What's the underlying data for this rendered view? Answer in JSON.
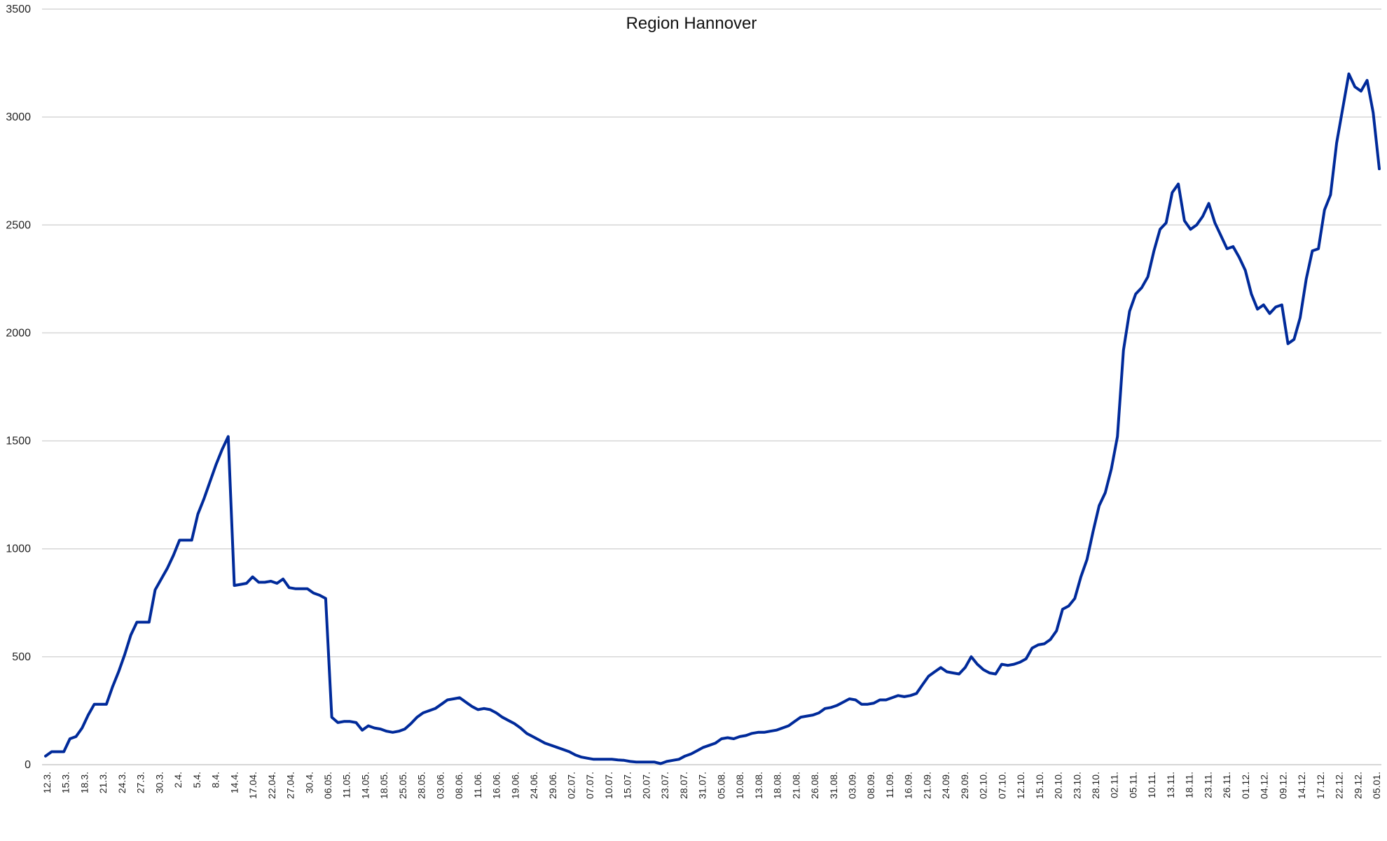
{
  "chart_data": {
    "type": "line",
    "title": "Region Hannover",
    "xlabel": "",
    "ylabel": "",
    "ylim": [
      0,
      3500
    ],
    "yticks": [
      0,
      500,
      1000,
      1500,
      2000,
      2500,
      3000,
      3500
    ],
    "grid": true,
    "legend": "none",
    "colors": {
      "line": "#002a9a",
      "grid": "#d6d6d6"
    },
    "x_tick_labels": [
      "12.3.",
      "15.3.",
      "18.3.",
      "21.3.",
      "24.3.",
      "27.3.",
      "30.3.",
      "2.4.",
      "5.4.",
      "8.4.",
      "14.4.",
      "17.04.",
      "22.04.",
      "27.04.",
      "30.4.",
      "06.05.",
      "11.05.",
      "14.05.",
      "18.05.",
      "25.05.",
      "28.05.",
      "03.06.",
      "08.06.",
      "11.06.",
      "16.06.",
      "19.06.",
      "24.06.",
      "29.06.",
      "02.07.",
      "07.07.",
      "10.07.",
      "15.07.",
      "20.07.",
      "23.07.",
      "28.07.",
      "31.07.",
      "05.08.",
      "10.08.",
      "13.08.",
      "18.08.",
      "21.08.",
      "26.08.",
      "31.08.",
      "03.09.",
      "08.09.",
      "11.09.",
      "16.09.",
      "21.09.",
      "24.09.",
      "29.09.",
      "02.10.",
      "07.10.",
      "12.10.",
      "15.10.",
      "20.10.",
      "23.10.",
      "28.10.",
      "02.11.",
      "05.11.",
      "10.11.",
      "13.11.",
      "18.11.",
      "23.11.",
      "26.11.",
      "01.12.",
      "04.12.",
      "09.12.",
      "14.12.",
      "17.12.",
      "22.12.",
      "29.12.",
      "05.01."
    ],
    "series": [
      {
        "values": [
          40,
          60,
          60,
          60,
          120,
          130,
          170,
          230,
          280,
          280,
          280,
          360,
          430,
          510,
          600,
          660,
          660,
          660,
          810,
          860,
          910,
          970,
          1040,
          1040,
          1040,
          1160,
          1230,
          1310,
          1390,
          1460,
          1520,
          830,
          835,
          840,
          870,
          845,
          845,
          850,
          840,
          860,
          820,
          815,
          815,
          815,
          795,
          785,
          770,
          220,
          195,
          200,
          200,
          195,
          160,
          180,
          170,
          165,
          155,
          150,
          155,
          165,
          190,
          220,
          240,
          250,
          260,
          280,
          300,
          305,
          310,
          290,
          270,
          255,
          260,
          255,
          240,
          220,
          205,
          190,
          170,
          145,
          130,
          115,
          100,
          90,
          80,
          70,
          60,
          45,
          35,
          30,
          25,
          25,
          25,
          25,
          22,
          20,
          15,
          12,
          12,
          12,
          12,
          5,
          15,
          20,
          25,
          40,
          50,
          65,
          80,
          90,
          100,
          120,
          125,
          120,
          130,
          135,
          145,
          150,
          150,
          155,
          160,
          170,
          180,
          200,
          220,
          225,
          230,
          240,
          260,
          265,
          275,
          290,
          305,
          300,
          280,
          280,
          285,
          300,
          300,
          310,
          320,
          315,
          320,
          330,
          370,
          410,
          430,
          450,
          430,
          425,
          420,
          450,
          500,
          465,
          440,
          425,
          420,
          465,
          460,
          465,
          475,
          490,
          540,
          555,
          560,
          580,
          620,
          720,
          735,
          770,
          870,
          950,
          1080,
          1200,
          1260,
          1370,
          1520,
          1920,
          2100,
          2180,
          2210,
          2260,
          2380,
          2480,
          2510,
          2650,
          2690,
          2520,
          2480,
          2500,
          2540,
          2600,
          2510,
          2450,
          2390,
          2400,
          2350,
          2290,
          2180,
          2110,
          2130,
          2090,
          2120,
          2130,
          1950,
          1970,
          2070,
          2250,
          2380,
          2390,
          2570,
          2640,
          2880,
          3040,
          3200,
          3140,
          3120,
          3170,
          3020,
          2760
        ]
      }
    ]
  }
}
